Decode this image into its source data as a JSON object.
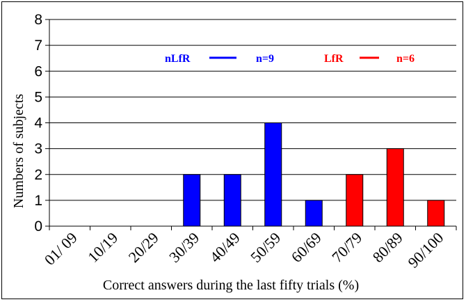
{
  "chart_data": {
    "type": "bar",
    "title": "",
    "xlabel": "Correct answers during the last fifty trials (%)",
    "ylabel": "Numbers of subjects",
    "ylim": [
      0,
      8
    ],
    "yticks": [
      "0",
      "1",
      "2",
      "3",
      "4",
      "5",
      "6",
      "7",
      "8"
    ],
    "grid": true,
    "legend_position": "top-center",
    "categories": [
      "01/ 09",
      "10/19",
      "20/29",
      "30/39",
      "40/49",
      "50/59",
      "60/69",
      "70/79",
      "80/89",
      "90/100"
    ],
    "series": [
      {
        "name": "nLfR",
        "n_label": "n=9",
        "color": "#0000ff",
        "values": [
          0,
          0,
          0,
          2,
          2,
          4,
          1,
          0,
          0,
          0
        ]
      },
      {
        "name": "LfR",
        "n_label": "n=6",
        "color": "#ff0000",
        "values": [
          0,
          0,
          0,
          0,
          0,
          0,
          0,
          2,
          3,
          1
        ]
      }
    ]
  }
}
